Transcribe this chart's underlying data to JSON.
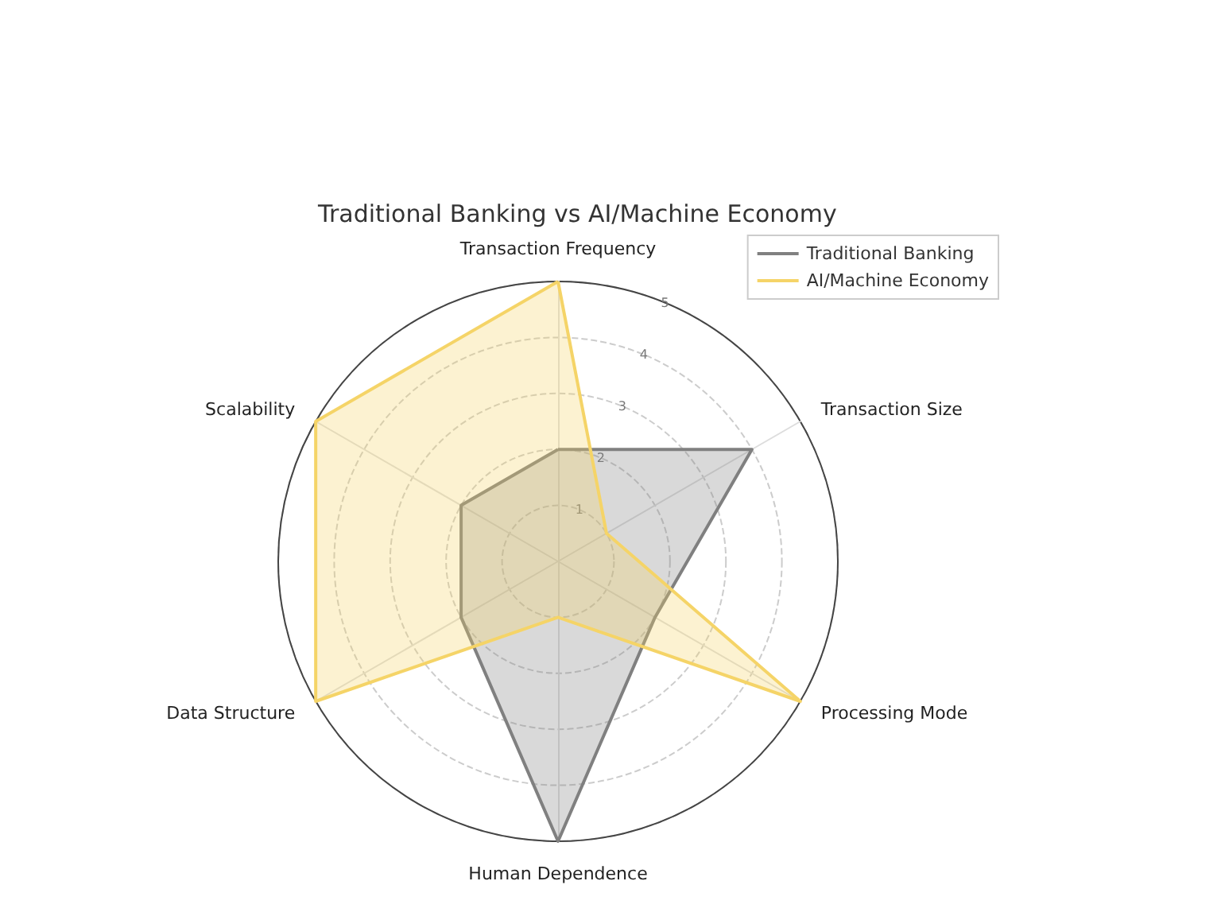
{
  "chart_data": {
    "type": "radar",
    "title": "Traditional Banking vs AI/Machine Economy",
    "categories": [
      "Transaction Frequency",
      "Transaction Size",
      "Processing Mode",
      "Human Dependence",
      "Data Structure",
      "Scalability"
    ],
    "series": [
      {
        "name": "Traditional Banking",
        "color": "#808080",
        "values": [
          2,
          4,
          2,
          5,
          2,
          2
        ]
      },
      {
        "name": "AI/Machine Economy",
        "color": "#f5d468",
        "values": [
          5,
          1,
          5,
          1,
          5,
          5
        ]
      }
    ],
    "ylim": [
      0,
      5
    ],
    "yticks": [
      1,
      2,
      3,
      4,
      5
    ],
    "grid": true,
    "legend": "top right",
    "marker": "none",
    "line_style": "solid"
  }
}
